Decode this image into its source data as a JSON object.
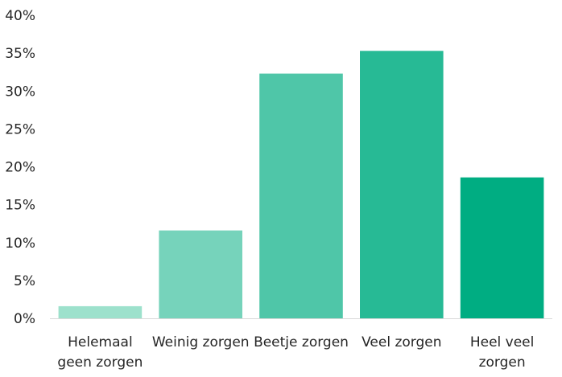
{
  "chart_data": {
    "type": "bar",
    "categories": [
      [
        "Helemaal",
        "geen zorgen"
      ],
      [
        "Weinig zorgen"
      ],
      [
        "Beetje zorgen"
      ],
      [
        "Veel zorgen"
      ],
      [
        "Heel veel",
        "zorgen"
      ]
    ],
    "values": [
      1.6,
      11.6,
      32.3,
      35.3,
      18.6
    ],
    "colors": [
      "#9de1cc",
      "#76d3bb",
      "#4fc6a8",
      "#27ba95",
      "#00ad82"
    ],
    "ylim": [
      0,
      40
    ],
    "yticks": [
      {
        "value": 0,
        "label": "0%"
      },
      {
        "value": 5,
        "label": "5%"
      },
      {
        "value": 10,
        "label": "10%"
      },
      {
        "value": 15,
        "label": "15%"
      },
      {
        "value": 20,
        "label": "20%"
      },
      {
        "value": 25,
        "label": "25%"
      },
      {
        "value": 30,
        "label": "30%"
      },
      {
        "value": 35,
        "label": "35%"
      },
      {
        "value": 40,
        "label": "40%"
      }
    ],
    "grid": false,
    "axis_color": "#d9d9d9"
  }
}
